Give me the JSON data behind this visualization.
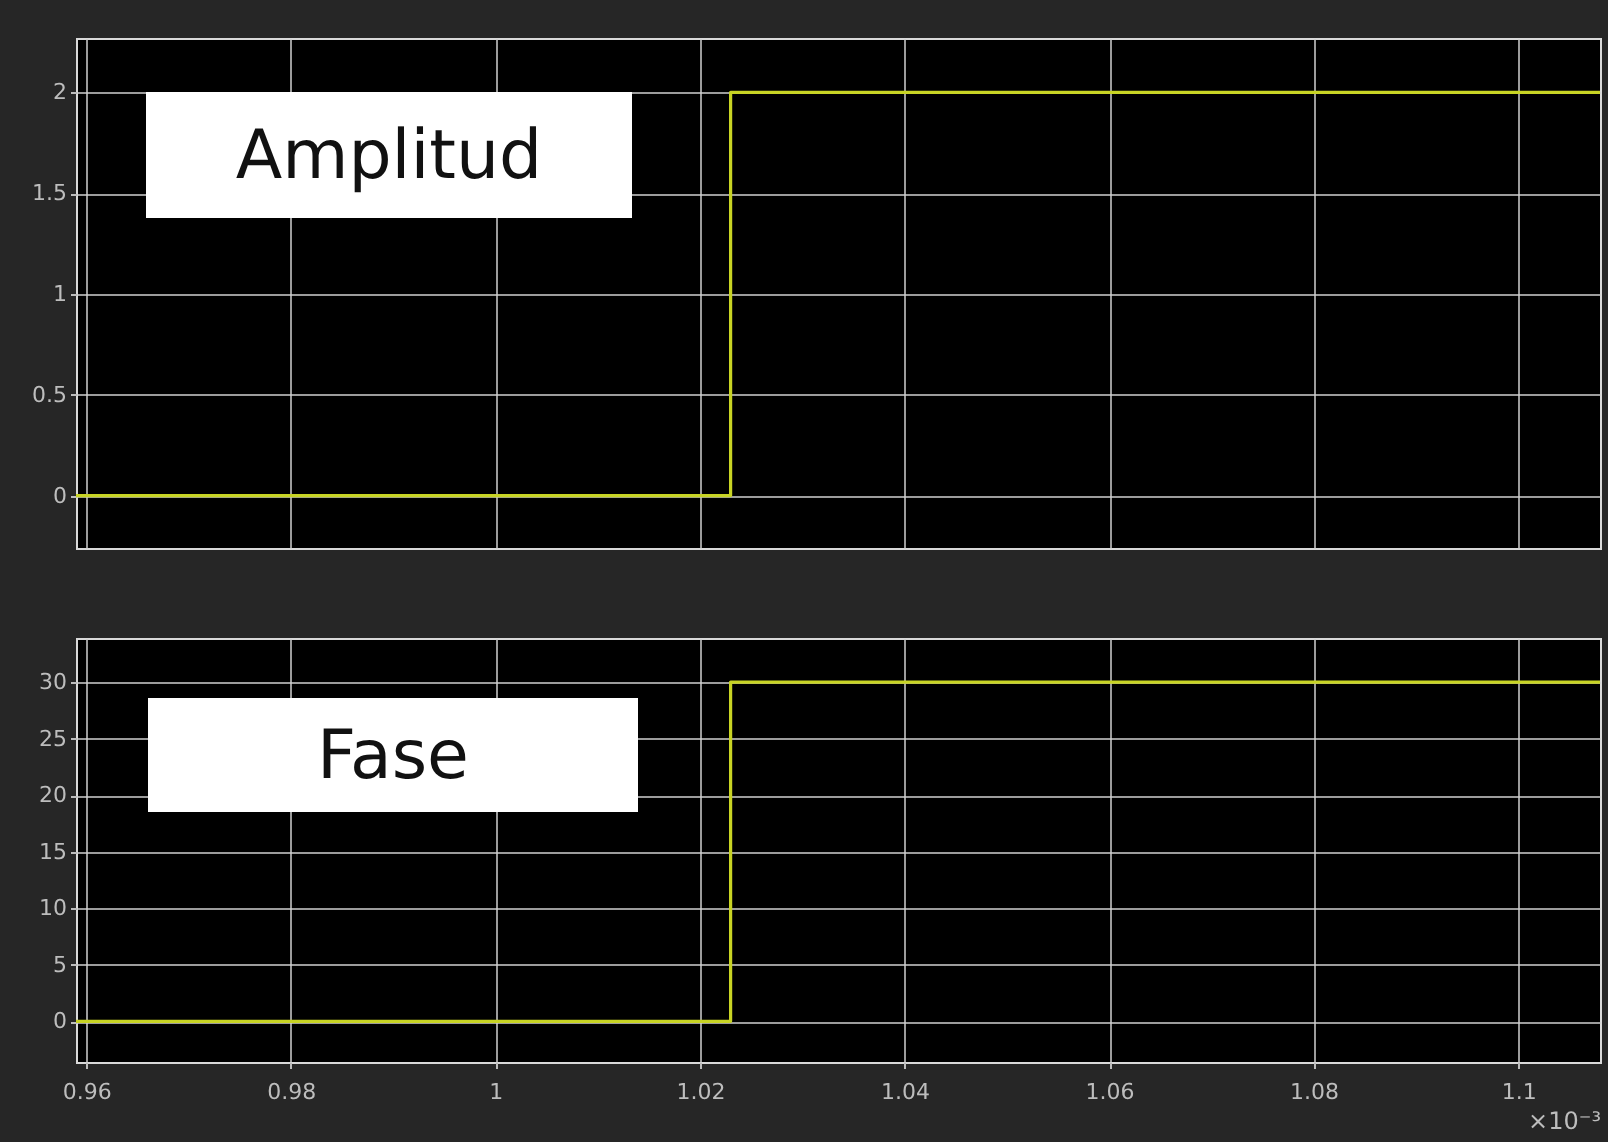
{
  "chart_data": [
    {
      "type": "step",
      "annotations": [
        "Amplitud"
      ],
      "x": [
        0.959,
        1.023,
        1.108
      ],
      "series": [
        {
          "color": "#c8d424",
          "values": [
            0,
            2,
            2
          ]
        }
      ],
      "xlim": [
        0.959,
        1.108
      ],
      "xticks": [
        0.96,
        0.98,
        1,
        1.02,
        1.04,
        1.06,
        1.08,
        1.1
      ],
      "ylim": [
        -0.26,
        2.27
      ],
      "yticks": [
        0,
        0.5,
        1,
        1.5,
        2
      ],
      "grid": true,
      "tick_labels": "y"
    },
    {
      "type": "step",
      "annotations": [
        "Fase"
      ],
      "xlabel": "×10⁻³",
      "x": [
        0.959,
        1.023,
        1.108
      ],
      "series": [
        {
          "color": "#c8d424",
          "values": [
            0,
            30,
            30
          ]
        }
      ],
      "xlim": [
        0.959,
        1.108
      ],
      "xticks": [
        0.96,
        0.98,
        1,
        1.02,
        1.04,
        1.06,
        1.08,
        1.1
      ],
      "ylim": [
        -3.6,
        33.9
      ],
      "yticks": [
        0,
        5,
        10,
        15,
        20,
        25,
        30
      ],
      "grid": true
    }
  ]
}
